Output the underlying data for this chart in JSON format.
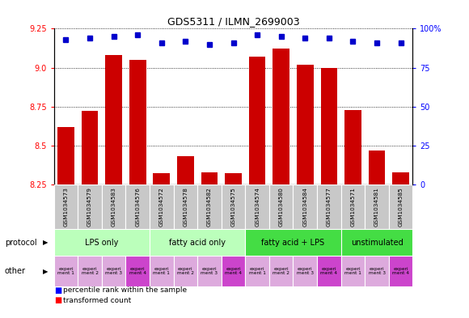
{
  "title": "GDS5311 / ILMN_2699003",
  "samples": [
    "GSM1034573",
    "GSM1034579",
    "GSM1034583",
    "GSM1034576",
    "GSM1034572",
    "GSM1034578",
    "GSM1034582",
    "GSM1034575",
    "GSM1034574",
    "GSM1034580",
    "GSM1034584",
    "GSM1034577",
    "GSM1034571",
    "GSM1034581",
    "GSM1034585"
  ],
  "transformed_count": [
    8.62,
    8.72,
    9.08,
    9.05,
    8.32,
    8.43,
    8.33,
    8.32,
    9.07,
    9.12,
    9.02,
    9.0,
    8.73,
    8.47,
    8.33
  ],
  "percentile_rank": [
    93,
    94,
    95,
    96,
    91,
    92,
    90,
    91,
    96,
    95,
    94,
    94,
    92,
    91,
    91
  ],
  "ylim_left": [
    8.25,
    9.25
  ],
  "ylim_right": [
    0,
    100
  ],
  "yticks_left": [
    8.25,
    8.5,
    8.75,
    9.0,
    9.25
  ],
  "yticks_right": [
    0,
    25,
    50,
    75,
    100
  ],
  "bar_color": "#cc0000",
  "dot_color": "#0000cc",
  "bg_color": "#ffffff",
  "sample_cell_color": "#c8c8c8",
  "protocol_groups": [
    {
      "label": "LPS only",
      "start": 0,
      "end": 4,
      "color": "#bbffbb"
    },
    {
      "label": "fatty acid only",
      "start": 4,
      "end": 8,
      "color": "#bbffbb"
    },
    {
      "label": "fatty acid + LPS",
      "start": 8,
      "end": 12,
      "color": "#44dd44"
    },
    {
      "label": "unstimulated",
      "start": 12,
      "end": 15,
      "color": "#44dd44"
    }
  ],
  "other_labels": [
    "experi\nment 1",
    "experi\nment 2",
    "experi\nment 3",
    "experi\nment 4",
    "experi\nment 1",
    "experi\nment 2",
    "experi\nment 3",
    "experi\nment 4",
    "experi\nment 1",
    "experi\nment 2",
    "experi\nment 3",
    "experi\nment 4",
    "experi\nment 1",
    "experi\nment 3",
    "experi\nment 4"
  ],
  "other_colors": [
    "#ddaadd",
    "#ddaadd",
    "#ddaadd",
    "#cc44cc",
    "#ddaadd",
    "#ddaadd",
    "#ddaadd",
    "#cc44cc",
    "#ddaadd",
    "#ddaadd",
    "#ddaadd",
    "#cc44cc",
    "#ddaadd",
    "#ddaadd",
    "#cc44cc"
  ]
}
